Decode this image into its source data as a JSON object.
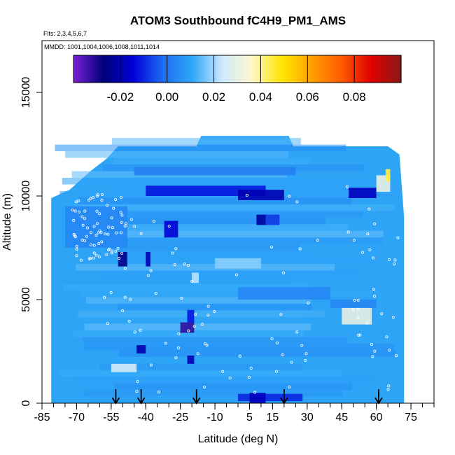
{
  "chart_data": {
    "type": "heatmap",
    "title": "ATOM3 Southbound fC4H9_PM1_AMS",
    "subtitle_flights": "Flts: 2,3,4,5,6,7",
    "subtitle_dates": "MMDD: 1001,1004,1006,1008,1011,1014",
    "xlabel": "Latitude (deg N)",
    "ylabel": "Altitude (m)",
    "xlim": [
      -85,
      85
    ],
    "ylim": [
      0,
      17500
    ],
    "x_ticks": [
      -85,
      -70,
      -55,
      -40,
      -25,
      -10,
      5,
      15,
      30,
      45,
      60,
      75
    ],
    "x_tick_labels": [
      "-85",
      "-70",
      "-55",
      "-40",
      "-25",
      "-10",
      "5",
      "15",
      "30",
      "45",
      "60",
      "75"
    ],
    "y_ticks": [
      0,
      5000,
      10000,
      15000
    ],
    "y_tick_labels": [
      "0",
      "5000",
      "10000",
      "15000"
    ],
    "colorbar": {
      "min": -0.04,
      "max": 0.1,
      "ticks": [
        -0.02,
        0.0,
        0.02,
        0.04,
        0.06,
        0.08
      ],
      "tick_labels": [
        "-0.02",
        "0.00",
        "0.02",
        "0.04",
        "0.06",
        "0.08"
      ],
      "colors": [
        "#7a22d4",
        "#00007a",
        "#0000d8",
        "#1e6cf0",
        "#2fa8f8",
        "#cfe9ff",
        "#fff8c8",
        "#ffe600",
        "#ffa000",
        "#ff5a00",
        "#e00000",
        "#8a1818"
      ]
    },
    "background_value": 0.01,
    "data_extent": [
      {
        "lat": -81,
        "alt_bottom": 0,
        "alt_top": 9900
      },
      {
        "lat": -73,
        "alt_bottom": 0,
        "alt_top": 10300
      },
      {
        "lat": -64,
        "alt_bottom": 0,
        "alt_top": 11200
      },
      {
        "lat": -57,
        "alt_bottom": 0,
        "alt_top": 11800
      },
      {
        "lat": -52,
        "alt_bottom": 0,
        "alt_top": 12400
      },
      {
        "lat": -18,
        "alt_bottom": 0,
        "alt_top": 12400
      },
      {
        "lat": -16,
        "alt_bottom": 0,
        "alt_top": 12900
      },
      {
        "lat": 22,
        "alt_bottom": 0,
        "alt_top": 12900
      },
      {
        "lat": 24,
        "alt_bottom": 0,
        "alt_top": 12400
      },
      {
        "lat": 65,
        "alt_bottom": 0,
        "alt_top": 12400
      },
      {
        "lat": 70,
        "alt_bottom": 0,
        "alt_top": 12000
      },
      {
        "lat": 72,
        "alt_bottom": 0,
        "alt_top": 9000
      },
      {
        "lat": 72,
        "alt_bottom": 0,
        "alt_top": 0
      }
    ],
    "features": [
      {
        "lat_min": -40,
        "lat_max": 12,
        "alt_min": 10000,
        "alt_max": 10500,
        "value": -0.012
      },
      {
        "lat_min": 0,
        "lat_max": 20,
        "alt_min": 9800,
        "alt_max": 10300,
        "value": -0.02
      },
      {
        "lat_min": 48,
        "lat_max": 60,
        "alt_min": 9900,
        "alt_max": 10400,
        "value": -0.018
      },
      {
        "lat_min": 60,
        "lat_max": 66,
        "alt_min": 10200,
        "alt_max": 11000,
        "value": 0.03
      },
      {
        "lat_min": 64,
        "lat_max": 66,
        "alt_min": 10700,
        "alt_max": 11300,
        "value": 0.045
      },
      {
        "lat_min": -45,
        "lat_max": 25,
        "alt_min": 11000,
        "alt_max": 11400,
        "value": 0.002
      },
      {
        "lat_min": 8,
        "lat_max": 12,
        "alt_min": 8600,
        "alt_max": 9100,
        "value": -0.022
      },
      {
        "lat_min": 12,
        "lat_max": 18,
        "alt_min": 8600,
        "alt_max": 9100,
        "value": -0.008
      },
      {
        "lat_min": -32,
        "lat_max": -26,
        "alt_min": 8000,
        "alt_max": 8800,
        "value": -0.015
      },
      {
        "lat_min": -52,
        "lat_max": -48,
        "alt_min": 6600,
        "alt_max": 7300,
        "value": -0.025
      },
      {
        "lat_min": -40,
        "lat_max": -38,
        "alt_min": 6600,
        "alt_max": 7300,
        "value": -0.02
      },
      {
        "lat_min": -20,
        "lat_max": -17,
        "alt_min": 5800,
        "alt_max": 6300,
        "value": 0.022
      },
      {
        "lat_min": 45,
        "lat_max": 58,
        "alt_min": 3800,
        "alt_max": 4600,
        "value": 0.03
      },
      {
        "lat_min": 40,
        "lat_max": 60,
        "alt_min": 4600,
        "alt_max": 5000,
        "value": 0.004
      },
      {
        "lat_min": -25,
        "lat_max": -19,
        "alt_min": 3400,
        "alt_max": 3900,
        "value": -0.032
      },
      {
        "lat_min": -22,
        "lat_max": -19,
        "alt_min": 3900,
        "alt_max": 4500,
        "value": -0.012
      },
      {
        "lat_min": -44,
        "lat_max": -40,
        "alt_min": 2400,
        "alt_max": 2800,
        "value": -0.02
      },
      {
        "lat_min": -22,
        "lat_max": -19,
        "alt_min": 1900,
        "alt_max": 2300,
        "value": -0.02
      },
      {
        "lat_min": -55,
        "lat_max": -44,
        "alt_min": 1500,
        "alt_max": 1900,
        "value": 0.025
      },
      {
        "lat_min": 0,
        "lat_max": 28,
        "alt_min": 100,
        "alt_max": 450,
        "value": -0.01
      },
      {
        "lat_min": 5,
        "lat_max": 12,
        "alt_min": 0,
        "alt_max": 500,
        "value": -0.018
      },
      {
        "lat_min": -75,
        "lat_max": -48,
        "alt_min": 7500,
        "alt_max": 9500,
        "value": 0.004
      },
      {
        "lat_min": 0,
        "lat_max": 40,
        "alt_min": 5000,
        "alt_max": 5600,
        "value": 0.004
      },
      {
        "lat_min": -10,
        "lat_max": 10,
        "alt_min": 6500,
        "alt_max": 7000,
        "value": 0.018
      }
    ],
    "arrows_lat": [
      -53,
      -42,
      -18,
      20,
      61
    ]
  }
}
